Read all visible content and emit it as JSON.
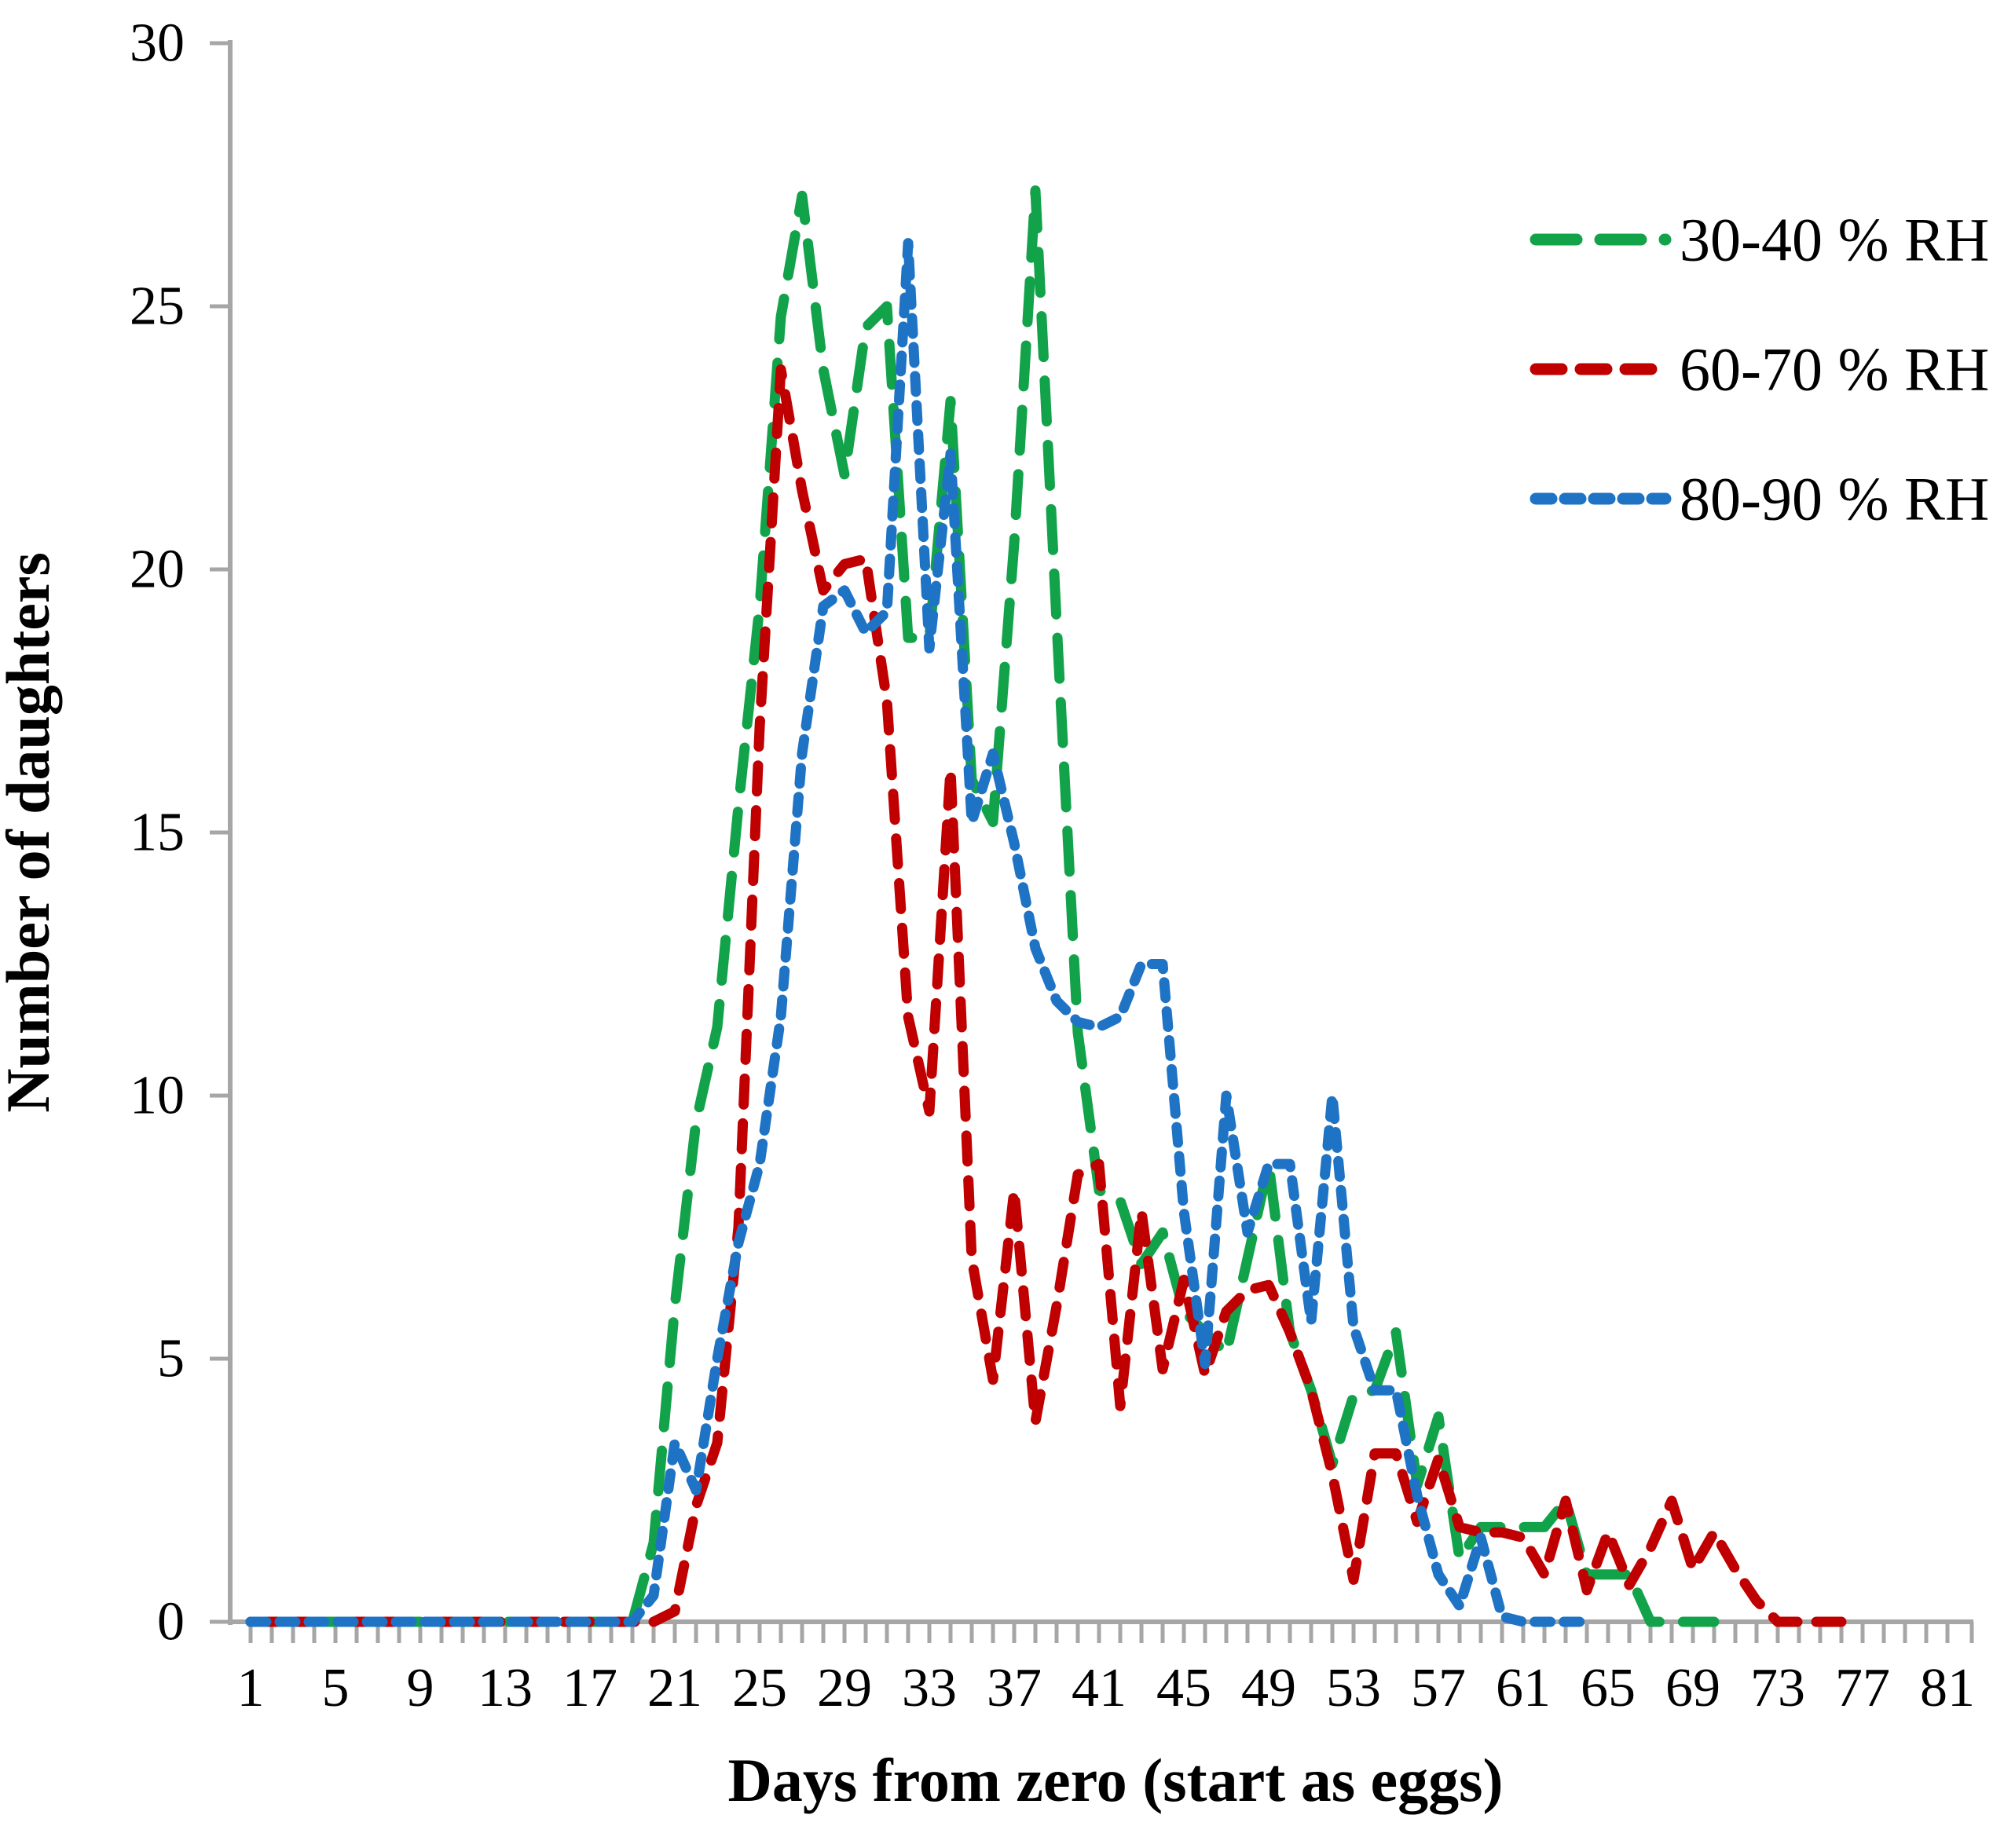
{
  "chart_data": {
    "type": "line",
    "title": "",
    "xlabel": "Days from zero (start as eggs)",
    "ylabel": "Number of daughters",
    "xlim": [
      1,
      81
    ],
    "ylim": [
      0,
      30
    ],
    "grid": false,
    "legend_position": "top-right",
    "y_ticks": [
      0,
      5,
      10,
      15,
      20,
      25,
      30
    ],
    "x_tick_labels": [
      1,
      5,
      9,
      13,
      17,
      21,
      25,
      29,
      33,
      37,
      41,
      45,
      49,
      53,
      57,
      61,
      65,
      69,
      73,
      77,
      81
    ],
    "x": [
      1,
      2,
      3,
      4,
      5,
      6,
      7,
      8,
      9,
      10,
      11,
      12,
      13,
      14,
      15,
      16,
      17,
      18,
      19,
      20,
      21,
      22,
      23,
      24,
      25,
      26,
      27,
      28,
      29,
      30,
      31,
      32,
      33,
      34,
      35,
      36,
      37,
      38,
      39,
      40,
      41,
      42,
      43,
      44,
      45,
      46,
      47,
      48,
      49,
      50,
      51,
      52,
      53,
      54,
      55,
      56,
      57,
      58,
      59,
      60,
      61,
      62,
      63,
      64,
      65,
      66,
      67,
      68,
      69,
      70,
      71,
      72,
      73,
      74,
      75,
      76,
      77,
      78,
      79,
      80,
      81
    ],
    "series": [
      {
        "name": "30-40 % RH",
        "color": "#12a34a",
        "dash": "long",
        "values": [
          0,
          0,
          0,
          0,
          0,
          0,
          0,
          0,
          0,
          0,
          0,
          0,
          0,
          0,
          0,
          0,
          0,
          0,
          0,
          1.5,
          6,
          9.5,
          11.3,
          15.5,
          19.3,
          24.8,
          27.1,
          23.8,
          21.8,
          24.6,
          25,
          18.7,
          18.7,
          23.2,
          16,
          15.2,
          20.5,
          27.2,
          19,
          11.2,
          8.2,
          8,
          6.8,
          7.4,
          5.9,
          5.5,
          5.1,
          6.9,
          8.7,
          5.5,
          4.4,
          3,
          4.3,
          4.4,
          5.5,
          2.6,
          3.9,
          1.2,
          1.8,
          1.8,
          1.8,
          1.8,
          2.3,
          0.9,
          0.9,
          0.9,
          0,
          0,
          0,
          0,
          null,
          null,
          null,
          null,
          null,
          null,
          null,
          null,
          null,
          null,
          null
        ]
      },
      {
        "name": "60-70 % RH",
        "color": "#c00000",
        "dash": "medium",
        "values": [
          0,
          0,
          0,
          0,
          0,
          0,
          0,
          0,
          0,
          0,
          0,
          0,
          0,
          0,
          0,
          0,
          0,
          0,
          0,
          0,
          0.2,
          2.2,
          3.4,
          7.5,
          17,
          23.8,
          21.5,
          19.6,
          20.1,
          20.2,
          17.5,
          11.5,
          9.7,
          16.2,
          6.9,
          4.6,
          8.2,
          3.8,
          6,
          8.5,
          8.7,
          4.1,
          7.8,
          4.8,
          6.5,
          4.7,
          5.9,
          6.3,
          6.4,
          5.5,
          4.4,
          2.8,
          0.8,
          3.2,
          3.2,
          1.9,
          3.1,
          1.8,
          1.7,
          1.7,
          1.6,
          0.9,
          2.3,
          0.6,
          1.7,
          0.7,
          1.4,
          2.3,
          1,
          1.7,
          1,
          0.4,
          0,
          0,
          0,
          0,
          null,
          null,
          null,
          null,
          null
        ]
      },
      {
        "name": "80-90 % RH",
        "color": "#1f73c5",
        "dash": "short",
        "values": [
          0,
          0,
          0,
          0,
          0,
          0,
          0,
          0,
          0,
          0,
          0,
          0,
          0,
          0,
          0,
          0,
          0,
          0,
          0,
          0.5,
          3.4,
          2.5,
          5,
          7.2,
          8.7,
          11.5,
          16.5,
          19.3,
          19.6,
          18.8,
          19.2,
          26.2,
          18.5,
          22.2,
          15.2,
          16.5,
          14.8,
          12.8,
          11.8,
          11.4,
          11.3,
          11.5,
          12.5,
          12.5,
          7.8,
          4.9,
          10,
          7.4,
          8.7,
          8.7,
          5.7,
          10,
          5.6,
          4.4,
          4.4,
          2.4,
          0.9,
          0.3,
          1.6,
          0.1,
          0,
          0,
          0,
          0,
          null,
          null,
          null,
          null,
          null,
          null,
          null,
          null,
          null,
          null,
          null,
          null,
          null,
          null,
          null,
          null,
          null
        ]
      }
    ],
    "axis_color": "#a6a6a6",
    "background": "#ffffff"
  }
}
